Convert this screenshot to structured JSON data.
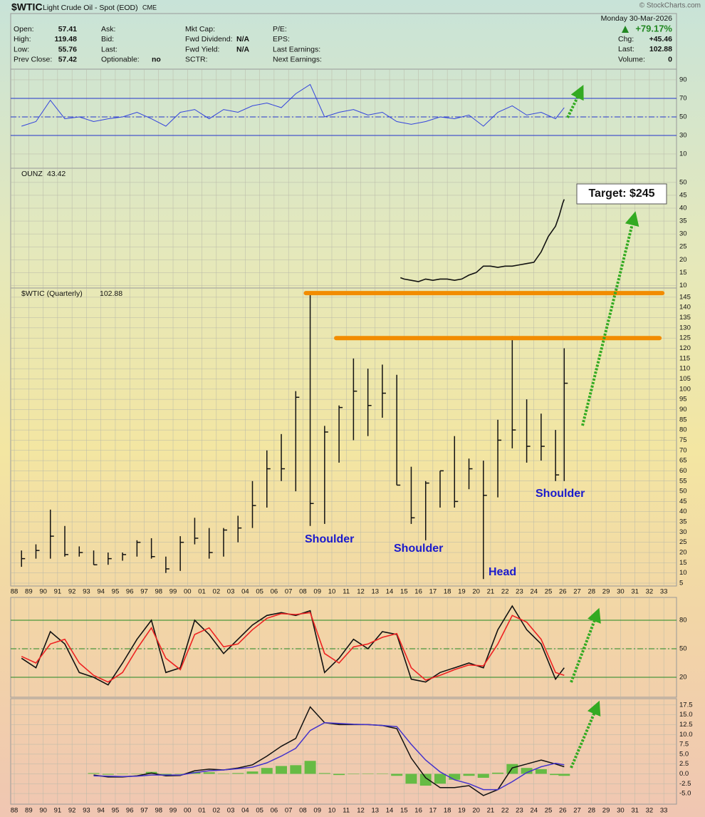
{
  "header": {
    "symbol": "$WTIC",
    "name": "Light Crude Oil - Spot (EOD)",
    "exchange": "CME",
    "watermark": "© StockCharts.com",
    "date": "Monday  30-Mar-2026",
    "change_pct": "+79.17%",
    "columns": [
      [
        {
          "label": "Open:",
          "value": "57.41"
        },
        {
          "label": "High:",
          "value": "119.48"
        },
        {
          "label": "Low:",
          "value": "55.76"
        },
        {
          "label": "Prev Close:",
          "value": "57.42"
        }
      ],
      [
        {
          "label": "Ask:"
        },
        {
          "label": "Bid:"
        },
        {
          "label": "Last:"
        },
        {
          "label": "Optionable:",
          "value": "no"
        }
      ],
      [
        {
          "label": "Mkt Cap:"
        },
        {
          "label": "Fwd Dividend:",
          "value": "N/A"
        },
        {
          "label": "Fwd Yield:",
          "value": "N/A"
        },
        {
          "label": "SCTR:"
        }
      ],
      [
        {
          "label": "P/E:"
        },
        {
          "label": "EPS:"
        },
        {
          "label": "Last Earnings:"
        },
        {
          "label": "Next Earnings:"
        }
      ]
    ],
    "right": [
      {
        "label": "Chg:",
        "value": "+45.46"
      },
      {
        "label": "Last:",
        "value": "102.88"
      },
      {
        "label": "Volume:",
        "value": "0"
      }
    ]
  },
  "chart_data": [
    {
      "type": "line",
      "ylim": [
        -5.4,
        101.5
      ],
      "yticks": [
        10,
        30,
        50,
        70,
        90
      ],
      "ylines": [
        30,
        50,
        70
      ],
      "line_color": "#2233cc",
      "series": [
        {
          "color": "#3344dd",
          "x": [
            1988.5,
            1989.5,
            1990.5,
            1991.5,
            1992.5,
            1993.5,
            1994.5,
            1995.5,
            1996.5,
            1997.5,
            1998.5,
            1999.5,
            2000.5,
            2001.5,
            2002.5,
            2003.5,
            2004.5,
            2005.5,
            2006.5,
            2007.5,
            2008.5,
            2009.5,
            2010.5,
            2011.5,
            2012.5,
            2013.5,
            2014.5,
            2015.5,
            2016.5,
            2017.5,
            2018.5,
            2019.5,
            2020.5,
            2021.5,
            2022.5,
            2023.5,
            2024.5,
            2025.5,
            2026.1
          ],
          "values": [
            40,
            45,
            68,
            48,
            50,
            45,
            48,
            50,
            55,
            48,
            40,
            55,
            58,
            48,
            58,
            55,
            62,
            65,
            60,
            75,
            85,
            50,
            55,
            58,
            52,
            55,
            45,
            42,
            45,
            50,
            48,
            52,
            40,
            55,
            62,
            52,
            55,
            48,
            60
          ]
        }
      ]
    },
    {
      "type": "line",
      "label": "OUNZ",
      "last": 43.42,
      "ylim": [
        9,
        55.5
      ],
      "yticks": [
        10,
        15,
        20,
        25,
        30,
        35,
        40,
        45,
        50
      ],
      "series": [
        {
          "color": "#111111",
          "x": [
            2014.75,
            2015,
            2015.5,
            2016,
            2016.5,
            2017,
            2017.5,
            2018,
            2018.5,
            2019,
            2019.5,
            2020,
            2020.5,
            2021,
            2021.5,
            2022,
            2022.5,
            2023,
            2023.5,
            2024,
            2024.5,
            2025,
            2025.5,
            2025.75,
            2026,
            2026.1
          ],
          "values": [
            13,
            12.5,
            12,
            11.5,
            12.5,
            12,
            12.5,
            12.5,
            12,
            12.5,
            14,
            15,
            17.5,
            17.5,
            17,
            17.5,
            17.5,
            18,
            18.5,
            19,
            23,
            29,
            33,
            37,
            42,
            43.42
          ]
        }
      ],
      "annotation": "Target: $245"
    },
    {
      "type": "ohlc",
      "label": "$WTIC (Quarterly)",
      "last": 102.88,
      "ylim": [
        3.6,
        149.5
      ],
      "yticks": [
        5,
        10,
        15,
        20,
        25,
        30,
        35,
        40,
        45,
        50,
        55,
        60,
        65,
        70,
        75,
        80,
        85,
        90,
        95,
        100,
        105,
        110,
        115,
        120,
        125,
        130,
        135,
        140,
        145
      ],
      "xlim": [
        1987.75,
        2033.88
      ],
      "xticks": [
        {
          "value": 1988,
          "label": "88"
        },
        {
          "value": 1989,
          "label": "89"
        },
        {
          "value": 1990,
          "label": "90"
        },
        {
          "value": 1991,
          "label": "91"
        },
        {
          "value": 1992,
          "label": "92"
        },
        {
          "value": 1993,
          "label": "93"
        },
        {
          "value": 1994,
          "label": "94"
        },
        {
          "value": 1995,
          "label": "95"
        },
        {
          "value": 1996,
          "label": "96"
        },
        {
          "value": 1997,
          "label": "97"
        },
        {
          "value": 1998,
          "label": "98"
        },
        {
          "value": 1999,
          "label": "99"
        },
        {
          "value": 2000,
          "label": "00"
        },
        {
          "value": 2001,
          "label": "01"
        },
        {
          "value": 2002,
          "label": "02"
        },
        {
          "value": 2003,
          "label": "03"
        },
        {
          "value": 2004,
          "label": "04"
        },
        {
          "value": 2005,
          "label": "05"
        },
        {
          "value": 2006,
          "label": "06"
        },
        {
          "value": 2007,
          "label": "07"
        },
        {
          "value": 2008,
          "label": "08"
        },
        {
          "value": 2009,
          "label": "09"
        },
        {
          "value": 2010,
          "label": "10"
        },
        {
          "value": 2011,
          "label": "11"
        },
        {
          "value": 2012,
          "label": "12"
        },
        {
          "value": 2013,
          "label": "13"
        },
        {
          "value": 2014,
          "label": "14"
        },
        {
          "value": 2015,
          "label": "15"
        },
        {
          "value": 2016,
          "label": "16"
        },
        {
          "value": 2017,
          "label": "17"
        },
        {
          "value": 2018,
          "label": "18"
        },
        {
          "value": 2019,
          "label": "19"
        },
        {
          "value": 2020,
          "label": "20"
        },
        {
          "value": 2021,
          "label": "21"
        },
        {
          "value": 2022,
          "label": "22"
        },
        {
          "value": 2023,
          "label": "23"
        },
        {
          "value": 2024,
          "label": "24"
        },
        {
          "value": 2025,
          "label": "25"
        },
        {
          "value": 2026,
          "label": "26"
        },
        {
          "value": 2027,
          "label": "27"
        },
        {
          "value": 2028,
          "label": "28"
        },
        {
          "value": 2029,
          "label": "29"
        },
        {
          "value": 2030,
          "label": "30"
        },
        {
          "value": 2031,
          "label": "31"
        },
        {
          "value": 2032,
          "label": "32"
        },
        {
          "value": 2033,
          "label": "33"
        }
      ],
      "bars": {
        "color": "#111111",
        "x": [
          1988.5,
          1989.5,
          1990.5,
          1991.5,
          1992.5,
          1993.5,
          1994.5,
          1995.5,
          1996.5,
          1997.5,
          1998.5,
          1999.5,
          2000.5,
          2001.5,
          2002.5,
          2003.5,
          2004.5,
          2005.5,
          2006.5,
          2007.5,
          2008.5,
          2009.5,
          2010.5,
          2011.5,
          2012.5,
          2013.5,
          2014.5,
          2015.5,
          2016.5,
          2017.5,
          2018.5,
          2019.5,
          2020.5,
          2021.5,
          2022.5,
          2023.5,
          2024.5,
          2025.5,
          2026.1
        ],
        "high": [
          21,
          24,
          41,
          33,
          23,
          21,
          20,
          20,
          26,
          27,
          18,
          28,
          37,
          32,
          32,
          38,
          55,
          70,
          78,
          99,
          147,
          82,
          92,
          115,
          110,
          112,
          107,
          62,
          55,
          60,
          77,
          66,
          65,
          85,
          126,
          95,
          88,
          80,
          120
        ],
        "low": [
          13,
          17,
          17,
          18,
          18,
          14,
          14,
          16,
          18,
          17,
          10,
          11,
          24,
          17,
          18,
          25,
          32,
          42,
          55,
          50,
          33,
          34,
          64,
          75,
          77,
          86,
          53,
          34,
          26,
          42,
          42,
          51,
          7,
          47,
          71,
          64,
          65,
          55,
          55
        ],
        "close": [
          17,
          21,
          28,
          19,
          20,
          14,
          17,
          19,
          25,
          18,
          12,
          25,
          27,
          20,
          31,
          32,
          43,
          61,
          61,
          96,
          44,
          79,
          91,
          99,
          92,
          98,
          53,
          37,
          54,
          60,
          45,
          61,
          48,
          75,
          80,
          72,
          72,
          58,
          102.88
        ]
      },
      "levels": [
        {
          "y": 147,
          "x": [
            2008.2,
            2032.9
          ]
        },
        {
          "y": 125,
          "x": [
            2010.3,
            2032.7
          ]
        }
      ],
      "level_color": "#f28c00",
      "annotations": [
        "Shoulder",
        "Shoulder",
        "Head",
        "Shoulder"
      ]
    },
    {
      "type": "line",
      "ylim": [
        -1,
        104
      ],
      "yticks": [
        20,
        50,
        80
      ],
      "ylines": [
        20,
        50,
        80
      ],
      "line_color": "#228822",
      "series": [
        {
          "color": "#111111",
          "x": [
            1988.5,
            1989.5,
            1990.5,
            1991.5,
            1992.5,
            1993.5,
            1994.5,
            1995.5,
            1996.5,
            1997.5,
            1998.5,
            1999.5,
            2000.5,
            2001.5,
            2002.5,
            2003.5,
            2004.5,
            2005.5,
            2006.5,
            2007.5,
            2008.5,
            2009.5,
            2010.5,
            2011.5,
            2012.5,
            2013.5,
            2014.5,
            2015.5,
            2016.5,
            2017.5,
            2018.5,
            2019.5,
            2020.5,
            2021.5,
            2022.5,
            2023.5,
            2024.5,
            2025.5,
            2026.1
          ],
          "values": [
            40,
            30,
            68,
            55,
            25,
            20,
            12,
            35,
            60,
            80,
            25,
            30,
            80,
            65,
            45,
            60,
            75,
            85,
            88,
            85,
            90,
            25,
            40,
            60,
            50,
            68,
            65,
            18,
            15,
            25,
            30,
            35,
            30,
            70,
            95,
            70,
            55,
            18,
            30
          ]
        },
        {
          "color": "#ee2222",
          "x": [
            1988.5,
            1989.5,
            1990.5,
            1991.5,
            1992.5,
            1993.5,
            1994.5,
            1995.5,
            1996.5,
            1997.5,
            1998.5,
            1999.5,
            2000.5,
            2001.5,
            2002.5,
            2003.5,
            2004.5,
            2005.5,
            2006.5,
            2007.5,
            2008.5,
            2009.5,
            2010.5,
            2011.5,
            2012.5,
            2013.5,
            2014.5,
            2015.5,
            2016.5,
            2017.5,
            2018.5,
            2019.5,
            2020.5,
            2021.5,
            2022.5,
            2023.5,
            2024.5,
            2025.5,
            2026.1
          ],
          "values": [
            42,
            35,
            55,
            60,
            35,
            22,
            15,
            25,
            50,
            72,
            40,
            28,
            65,
            72,
            52,
            55,
            70,
            82,
            87,
            86,
            88,
            45,
            35,
            52,
            55,
            62,
            66,
            30,
            17,
            22,
            28,
            33,
            32,
            55,
            85,
            78,
            60,
            25,
            22
          ]
        }
      ]
    },
    {
      "type": "macd",
      "ylim": [
        -7.7,
        19.1
      ],
      "yticks": [
        {
          "value": -5,
          "label": "-5.0"
        },
        -2.5,
        {
          "value": 0,
          "label": "0.0"
        },
        2.5,
        {
          "value": 5,
          "label": "5.0"
        },
        7.5,
        {
          "value": 10,
          "label": "10.0"
        },
        12.5,
        {
          "value": 15,
          "label": "15.0"
        },
        17.5
      ],
      "x": [
        1993.5,
        1994.5,
        1995.5,
        1996.5,
        1997.5,
        1998.5,
        1999.5,
        2000.5,
        2001.5,
        2002.5,
        2003.5,
        2004.5,
        2005.5,
        2006.5,
        2007.5,
        2008.5,
        2009.5,
        2010.5,
        2011.5,
        2012.5,
        2013.5,
        2014.5,
        2015.5,
        2016.5,
        2017.5,
        2018.5,
        2019.5,
        2020.5,
        2021.5,
        2022.5,
        2023.5,
        2024.5,
        2025.5,
        2026.1
      ],
      "series": [
        {
          "color": "#111111",
          "values": [
            -0.3,
            -0.8,
            -0.8,
            -0.5,
            0.2,
            -0.5,
            -0.4,
            0.8,
            1.2,
            1.0,
            1.5,
            2.3,
            4.5,
            7.0,
            9.0,
            17.0,
            13.0,
            12.5,
            12.5,
            12.5,
            12.3,
            11.5,
            4.0,
            -1.0,
            -3.5,
            -3.5,
            -3.0,
            -5.5,
            -4.0,
            1.5,
            2.5,
            3.5,
            2.5,
            1.8
          ]
        },
        {
          "color": "#4433cc",
          "values": [
            -0.5,
            -0.6,
            -0.7,
            -0.6,
            -0.3,
            -0.3,
            -0.3,
            0.3,
            0.8,
            1.0,
            1.3,
            1.7,
            2.8,
            4.5,
            6.5,
            11.0,
            13.0,
            12.8,
            12.6,
            12.5,
            12.3,
            12.0,
            7.5,
            3.5,
            0.5,
            -1.5,
            -2.5,
            -4.0,
            -4.0,
            -2.0,
            0.3,
            1.8,
            2.7,
            2.3
          ]
        }
      ],
      "histogram": {
        "color": "#66bb44",
        "values": [
          0.2,
          -0.2,
          -0.1,
          0.1,
          0.5,
          -0.2,
          -0.1,
          0.5,
          0.4,
          0.1,
          0.2,
          0.6,
          1.5,
          2.0,
          2.2,
          3.3,
          0.2,
          -0.3,
          -0.1,
          0.1,
          0.1,
          -0.5,
          -2.5,
          -3.0,
          -2.5,
          -1.5,
          -0.5,
          -1.0,
          0.3,
          2.5,
          1.5,
          1.2,
          -0.3,
          -0.5
        ]
      }
    }
  ]
}
